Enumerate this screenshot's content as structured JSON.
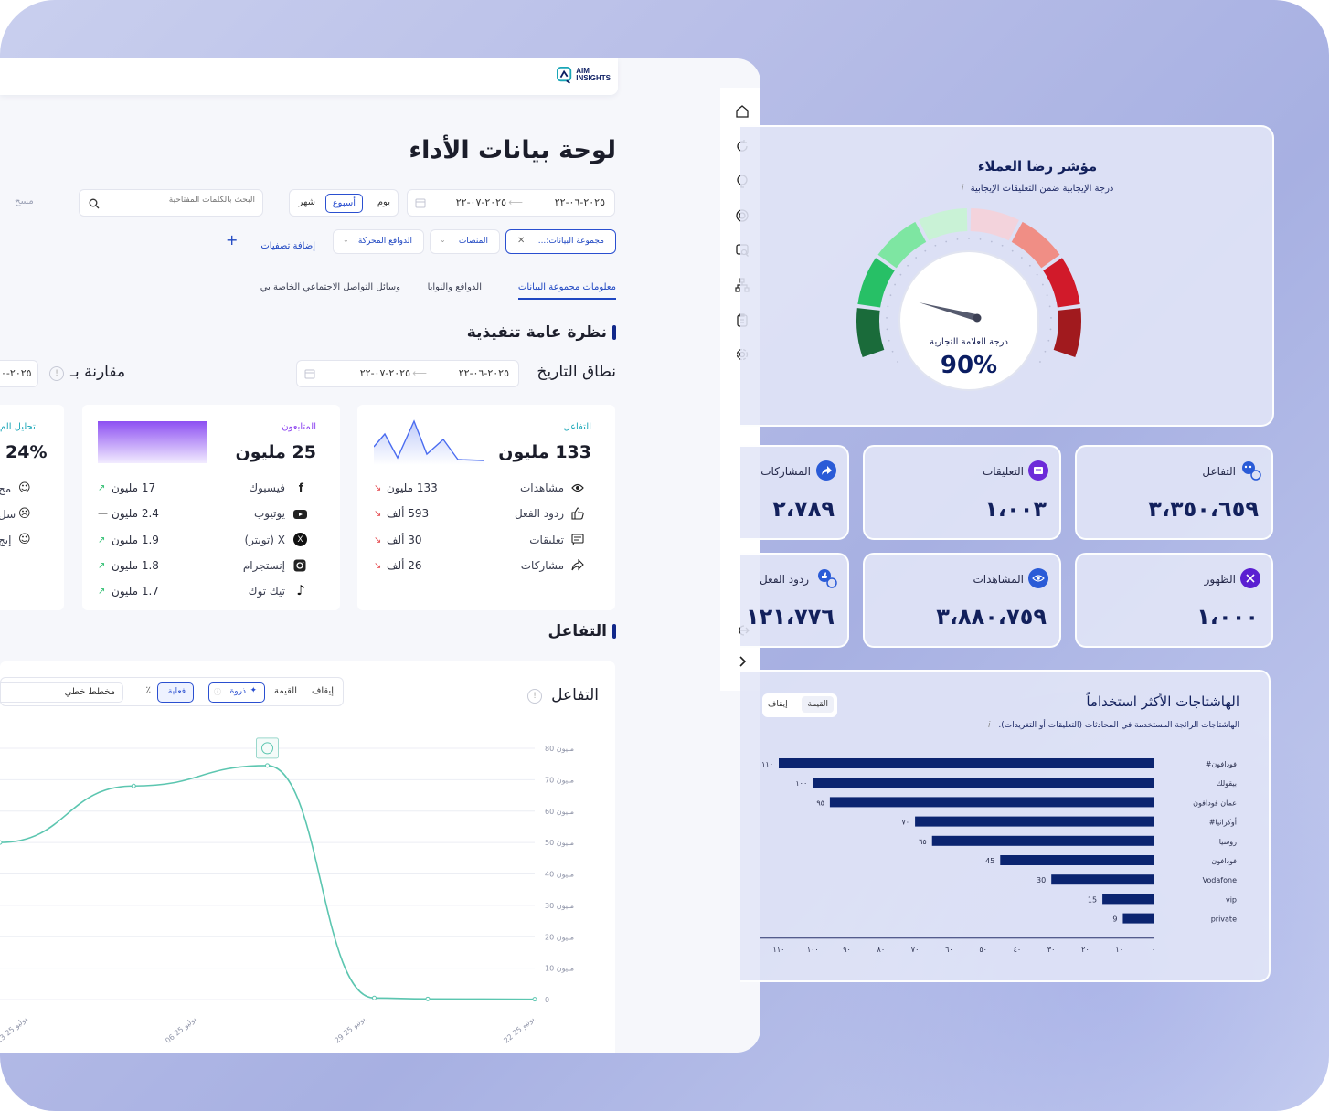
{
  "brand": {
    "logo_line1": "AIM",
    "logo_line2": "INSIGHTS",
    "accent": "#11288a"
  },
  "page": {
    "title": "لوحة بيانات الأداء"
  },
  "sidebar": {
    "icons": [
      "home-icon",
      "refresh-icon",
      "brain-icon",
      "target-icon",
      "search-doc-icon",
      "hierarchy-icon",
      "clipboard-icon",
      "settings-icon",
      "logout-icon",
      "chevron-right-icon"
    ]
  },
  "filters": {
    "date_from": "٢٠٢٥-٠٦-٢٢",
    "date_to": "٢٠٢٥-٠٧-٢٢",
    "period_day": "يوم",
    "period_week": "أسبوع",
    "period_month": "شهر",
    "search_placeholder": "البحث بالكلمات المفتاحية",
    "clear_label": "مسح",
    "dataset_chip": "مجموعة البيانات:...",
    "platforms": "المنصات",
    "drivers": "الدوافع المحركة",
    "add_filters": "إضافة تصفيات"
  },
  "tabs": [
    {
      "label": "معلومات مجموعة البيانات",
      "active": true
    },
    {
      "label": "الدوافع والنوايا",
      "active": false
    },
    {
      "label": "وسائل التواصل الاجتماعي الخاصة بي",
      "active": false
    }
  ],
  "overview": {
    "title": "نظرة عامة تنفيذية",
    "date_range_label": "نطاق التاريخ",
    "date_from": "٢٠٢٥-٠٦-٢٢",
    "date_to": "٢٠٢٥-٠٧-٢٢",
    "compare_label": "مقارنة بـ",
    "compare_date": "٢٠٢٥-٠"
  },
  "engagement_card": {
    "label": "التفاعل",
    "value": "133 مليون",
    "rows": [
      {
        "label": "مشاهدات",
        "value": "133 مليون",
        "trend": "down",
        "icon": "eye-icon"
      },
      {
        "label": "ردود الفعل",
        "value": "593 ألف",
        "trend": "down",
        "icon": "thumbs-up-icon"
      },
      {
        "label": "تعليقات",
        "value": "30 ألف",
        "trend": "down",
        "icon": "comment-icon"
      },
      {
        "label": "مشاركات",
        "value": "26 ألف",
        "trend": "down",
        "icon": "share-icon"
      }
    ],
    "sparkline": [
      10,
      22,
      6,
      30,
      8,
      18,
      4,
      3
    ]
  },
  "followers_card": {
    "label": "المتابعون",
    "value": "25 مليون",
    "rows": [
      {
        "label": "فيسبوك",
        "value": "17 مليون",
        "trend": "up",
        "icon": "facebook-icon"
      },
      {
        "label": "يوتيوب",
        "value": "2.4 مليون",
        "trend": "flat",
        "icon": "youtube-icon"
      },
      {
        "label": "X (تويتر)",
        "value": "1.9 مليون",
        "trend": "up",
        "icon": "x-icon"
      },
      {
        "label": "إنستجرام",
        "value": "1.8 مليون",
        "trend": "up",
        "icon": "instagram-icon"
      },
      {
        "label": "تيك توك",
        "value": "1.7 مليون",
        "trend": "up",
        "icon": "tiktok-icon"
      }
    ]
  },
  "sentiment_card": {
    "label": "تحليل الم",
    "value": "24%",
    "rows": [
      "مح",
      "سل",
      "إيج"
    ]
  },
  "engagement_section": {
    "title": "التفاعل",
    "chart_title": "التفاعل",
    "toggle_stop": "إيقاف",
    "toggle_value": "القيمة",
    "peak_label": "ذروة",
    "actual_label": "فعلية",
    "percent_label": "٪",
    "chart_type": "مخطط خطي"
  },
  "chart_data": [
    {
      "type": "line",
      "title": "التفاعل",
      "x": [
        "13 يوليو 25",
        "06 يوليو 25",
        "29 يونيو 25",
        "22 يونيو 25"
      ],
      "y_ticks": [
        "80 مليون",
        "70 مليون",
        "60 مليون",
        "50 مليون",
        "40 مليون",
        "30 مليون",
        "20 مليون",
        "10 مليون",
        "0"
      ],
      "series": [
        {
          "values": [
            [
              0,
              0.1
            ],
            [
              0.2,
              0.2
            ],
            [
              0.3,
              0.5
            ],
            [
              0.5,
              74.5
            ],
            [
              0.75,
              68
            ],
            [
              1,
              50
            ]
          ]
        }
      ],
      "ylim": [
        0,
        80
      ]
    },
    {
      "type": "bar",
      "title": "الهاشتاجات الأكثر استخداماً",
      "categories": [
        "#فودافون",
        "بيقولك",
        "عمان فودافون",
        "#أوكرانيا",
        "روسيا",
        "فودافون",
        "Vodafone",
        "vip",
        "private"
      ],
      "values": [
        110,
        100,
        95,
        70,
        65,
        45,
        30,
        15,
        9
      ],
      "value_labels": [
        "١١٠",
        "١٠٠",
        "٩٥",
        "٧٠",
        "٦٥",
        "45",
        "30",
        "15",
        "9"
      ],
      "x_ticks": [
        "١١٠",
        "١٠٠",
        "٩٠",
        "٨٠",
        "٧٠",
        "٦٠",
        "٥٠",
        "٤٠",
        "٣٠",
        "٢٠",
        "١٠",
        "٠"
      ],
      "xlim": [
        0,
        110
      ],
      "color": "#0b2470"
    }
  ],
  "csat": {
    "title": "مؤشر رضا العملاء",
    "subtitle": "درجة الإيجابية ضمن التعليقات الإيجابية",
    "info": "i",
    "gauge_label": "درجة العلامة التجارية",
    "gauge_value": "90%",
    "gauge_percent": 90
  },
  "kpis": [
    {
      "label": "التفاعل",
      "value": "٣،٣٥٠،٦٥٩",
      "icon": "engagement-icon",
      "color": "#2a5bd7"
    },
    {
      "label": "التعليقات",
      "value": "١،٠٠٣",
      "icon": "comments-icon",
      "color": "#6d2bd9"
    },
    {
      "label": "المشاركات",
      "value": "٢،٧٨٩",
      "icon": "share-icon",
      "color": "#2a5bd7"
    },
    {
      "label": "الظهور",
      "value": "١،٠٠٠",
      "icon": "reach-icon",
      "color": "#5a1fd1"
    },
    {
      "label": "المشاهدات",
      "value": "٣،٨٨٠،٧٥٩",
      "icon": "views-icon",
      "color": "#2a5bd7"
    },
    {
      "label": "ردود الفعل",
      "value": "١٢١،٧٧٦",
      "icon": "reactions-icon",
      "color": "#2a5bd7"
    }
  ],
  "hashtags": {
    "title": "الهاشتاجات الأكثر استخداماً",
    "subtitle": "الهاشتاجات الرائجة المستخدمة في المحادثات (التعليقات أو التغريدات).",
    "info": "i",
    "toggle_value": "القيمة",
    "toggle_stop": "إيقاف"
  }
}
